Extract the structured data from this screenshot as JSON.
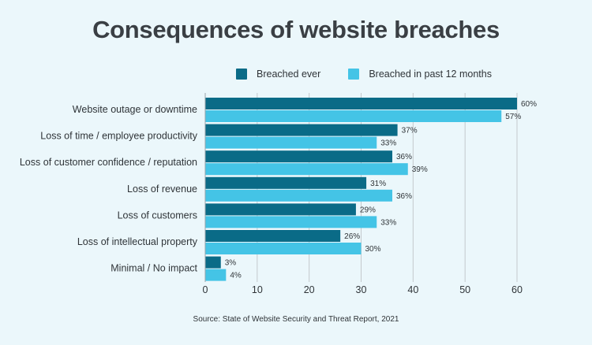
{
  "colors": {
    "background": "#ebf7fb",
    "series_dark": "#0a6b87",
    "series_light": "#44c4e6",
    "gridline": "#c4c9cc",
    "text": "#2f3438"
  },
  "chart_data": {
    "type": "bar",
    "orientation": "horizontal",
    "title": "Consequences of website breaches",
    "categories": [
      "Website outage or downtime",
      "Loss of time / employee productivity",
      "Loss of customer confidence / reputation",
      "Loss of revenue",
      "Loss of customers",
      "Loss of intellectual property",
      "Minimal / No impact"
    ],
    "series": [
      {
        "name": "Breached ever",
        "color": "#0a6b87",
        "values": [
          60,
          37,
          36,
          31,
          29,
          26,
          3
        ]
      },
      {
        "name": "Breached in past 12 months",
        "color": "#44c4e6",
        "values": [
          57,
          33,
          39,
          36,
          33,
          30,
          4
        ]
      }
    ],
    "value_suffix": "%",
    "xlim": [
      0,
      60
    ],
    "xticks": [
      0,
      10,
      20,
      30,
      40,
      50,
      60
    ],
    "grid": true,
    "legend_position": "top",
    "source": "Source: State of Website Security and Threat Report, 2021"
  }
}
